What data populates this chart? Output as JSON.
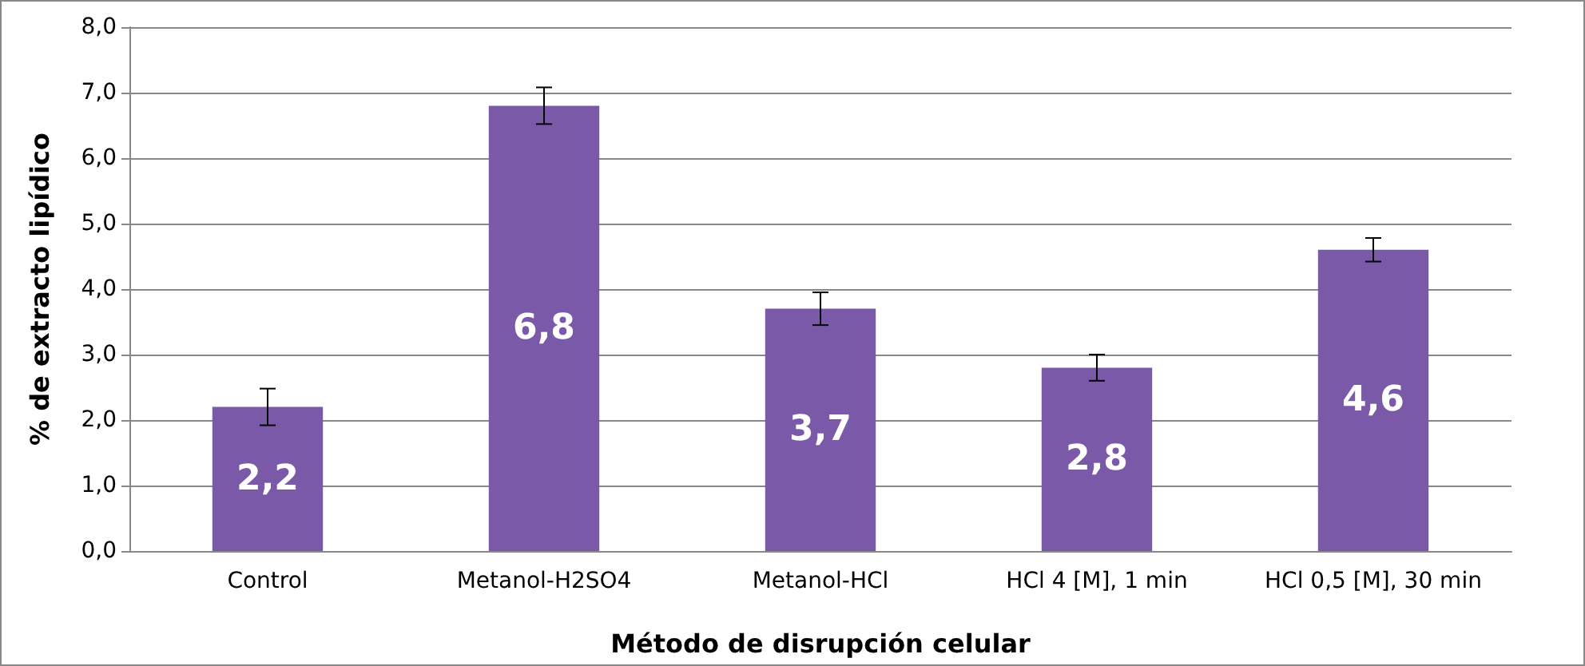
{
  "chart_data": {
    "type": "bar",
    "xlabel": "Método de disrupción celular",
    "ylabel": "% de extracto lipídico",
    "categories": [
      "Control",
      "Metanol-H2SO4",
      "Metanol-HCl",
      "HCl 4 [M], 1 min",
      "HCl 0,5 [M], 30 min"
    ],
    "values": [
      2.2,
      6.8,
      3.7,
      2.8,
      4.6
    ],
    "value_labels": [
      "2,2",
      "6,8",
      "3,7",
      "2,8",
      "4,6"
    ],
    "errors": [
      0.28,
      0.28,
      0.25,
      0.2,
      0.18
    ],
    "color": "#7a5aa8",
    "ylim": [
      0,
      8
    ],
    "yticks": [
      {
        "value": 0,
        "label": "0,0"
      },
      {
        "value": 1,
        "label": "1,0"
      },
      {
        "value": 2,
        "label": "2,0"
      },
      {
        "value": 3,
        "label": "3,0"
      },
      {
        "value": 4,
        "label": "4,0"
      },
      {
        "value": 5,
        "label": "5,0"
      },
      {
        "value": 6,
        "label": "6,0"
      },
      {
        "value": 7,
        "label": "7,0"
      },
      {
        "value": 8,
        "label": "8,0"
      }
    ],
    "grid": true
  }
}
